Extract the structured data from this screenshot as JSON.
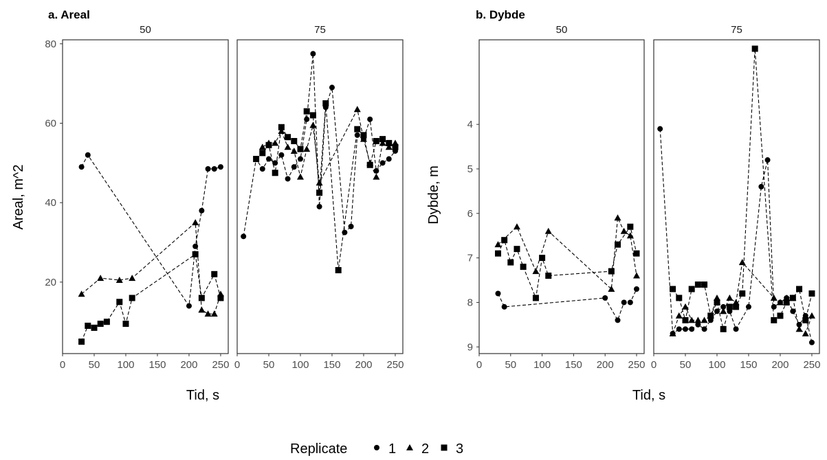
{
  "chart_data": [
    {
      "type": "scatter",
      "title": "a. Areal",
      "xlabel": "Tid, s",
      "ylabel": "Areal, m^2",
      "ylim": [
        2,
        81
      ],
      "yticks": [
        20,
        40,
        60,
        80
      ],
      "xticks": [
        0,
        50,
        100,
        150,
        200,
        250
      ],
      "facets": [
        {
          "label": "50",
          "xlim": [
            0,
            262
          ],
          "series": [
            {
              "name": "1",
              "points": [
                [
                  30,
                  49
                ],
                [
                  40,
                  52
                ],
                [
                  200,
                  14
                ],
                [
                  210,
                  29
                ],
                [
                  220,
                  38
                ],
                [
                  230,
                  48.5
                ],
                [
                  240,
                  48.5
                ],
                [
                  250,
                  49
                ]
              ]
            },
            {
              "name": "2",
              "points": [
                [
                  30,
                  17
                ],
                [
                  60,
                  21
                ],
                [
                  90,
                  20.5
                ],
                [
                  110,
                  21
                ],
                [
                  210,
                  35
                ],
                [
                  220,
                  13
                ],
                [
                  230,
                  12
                ],
                [
                  240,
                  12
                ],
                [
                  250,
                  17
                ]
              ]
            },
            {
              "name": "3",
              "points": [
                [
                  30,
                  5
                ],
                [
                  40,
                  9
                ],
                [
                  50,
                  8.5
                ],
                [
                  60,
                  9.5
                ],
                [
                  70,
                  10
                ],
                [
                  90,
                  15
                ],
                [
                  100,
                  9.5
                ],
                [
                  110,
                  16
                ],
                [
                  210,
                  27
                ],
                [
                  220,
                  16
                ],
                [
                  240,
                  22
                ],
                [
                  250,
                  16
                ]
              ]
            }
          ]
        },
        {
          "label": "75",
          "xlim": [
            0,
            262
          ],
          "series": [
            {
              "name": "1",
              "points": [
                [
                  10,
                  31.5
                ],
                [
                  30,
                  51
                ],
                [
                  40,
                  48.5
                ],
                [
                  50,
                  51
                ],
                [
                  60,
                  50
                ],
                [
                  70,
                  52
                ],
                [
                  80,
                  46
                ],
                [
                  90,
                  49
                ],
                [
                  100,
                  51
                ],
                [
                  110,
                  61
                ],
                [
                  120,
                  77.5
                ],
                [
                  130,
                  39
                ],
                [
                  140,
                  64
                ],
                [
                  150,
                  69
                ],
                [
                  170,
                  32.5
                ],
                [
                  180,
                  34
                ],
                [
                  190,
                  57
                ],
                [
                  200,
                  56
                ],
                [
                  210,
                  61
                ],
                [
                  220,
                  48
                ],
                [
                  230,
                  50
                ],
                [
                  240,
                  51
                ],
                [
                  250,
                  53
                ]
              ]
            },
            {
              "name": "2",
              "points": [
                [
                  40,
                  54
                ],
                [
                  50,
                  55
                ],
                [
                  60,
                  55
                ],
                [
                  70,
                  58
                ],
                [
                  80,
                  54
                ],
                [
                  90,
                  53
                ],
                [
                  100,
                  46.5
                ],
                [
                  110,
                  53.5
                ],
                [
                  120,
                  59.5
                ],
                [
                  130,
                  45
                ],
                [
                  190,
                  63.5
                ],
                [
                  200,
                  56
                ],
                [
                  210,
                  50
                ],
                [
                  220,
                  46.5
                ],
                [
                  230,
                  55
                ],
                [
                  240,
                  54
                ],
                [
                  250,
                  55
                ]
              ]
            },
            {
              "name": "3",
              "points": [
                [
                  30,
                  51
                ],
                [
                  40,
                  52.5
                ],
                [
                  50,
                  54.5
                ],
                [
                  60,
                  47.5
                ],
                [
                  70,
                  59
                ],
                [
                  80,
                  56.5
                ],
                [
                  90,
                  55.5
                ],
                [
                  100,
                  53.5
                ],
                [
                  110,
                  63
                ],
                [
                  120,
                  62
                ],
                [
                  130,
                  42.5
                ],
                [
                  140,
                  65
                ],
                [
                  160,
                  23
                ],
                [
                  190,
                  58.5
                ],
                [
                  200,
                  57
                ],
                [
                  210,
                  49.5
                ],
                [
                  220,
                  55.5
                ],
                [
                  230,
                  56
                ],
                [
                  240,
                  55
                ],
                [
                  250,
                  54
                ]
              ]
            }
          ]
        }
      ]
    },
    {
      "type": "scatter",
      "title": "b. Dybde",
      "xlabel": "Tid, s",
      "ylabel": "Dybde, m",
      "ylim": [
        9.15,
        2.1
      ],
      "y_reversed": true,
      "yticks": [
        4,
        5,
        6,
        7,
        8,
        9
      ],
      "xticks": [
        0,
        50,
        100,
        150,
        200,
        250
      ],
      "facets": [
        {
          "label": "50",
          "xlim": [
            0,
            262
          ],
          "series": [
            {
              "name": "1",
              "points": [
                [
                  30,
                  7.8
                ],
                [
                  40,
                  8.1
                ],
                [
                  200,
                  7.9
                ],
                [
                  220,
                  8.4
                ],
                [
                  230,
                  8.0
                ],
                [
                  240,
                  8.0
                ],
                [
                  250,
                  7.7
                ]
              ]
            },
            {
              "name": "2",
              "points": [
                [
                  30,
                  6.7
                ],
                [
                  60,
                  6.3
                ],
                [
                  90,
                  7.3
                ],
                [
                  110,
                  6.4
                ],
                [
                  210,
                  7.7
                ],
                [
                  220,
                  6.1
                ],
                [
                  230,
                  6.4
                ],
                [
                  240,
                  6.5
                ],
                [
                  250,
                  7.4
                ]
              ]
            },
            {
              "name": "3",
              "points": [
                [
                  30,
                  6.9
                ],
                [
                  40,
                  6.6
                ],
                [
                  50,
                  7.1
                ],
                [
                  60,
                  6.8
                ],
                [
                  70,
                  7.2
                ],
                [
                  90,
                  7.9
                ],
                [
                  100,
                  7.0
                ],
                [
                  110,
                  7.4
                ],
                [
                  210,
                  7.3
                ],
                [
                  220,
                  6.7
                ],
                [
                  240,
                  6.3
                ],
                [
                  250,
                  6.9
                ]
              ]
            }
          ]
        },
        {
          "label": "75",
          "xlim": [
            0,
            262
          ],
          "series": [
            {
              "name": "1",
              "points": [
                [
                  10,
                  4.1
                ],
                [
                  30,
                  8.7
                ],
                [
                  40,
                  8.6
                ],
                [
                  50,
                  8.6
                ],
                [
                  60,
                  8.6
                ],
                [
                  70,
                  8.5
                ],
                [
                  80,
                  8.6
                ],
                [
                  90,
                  8.4
                ],
                [
                  100,
                  8.2
                ],
                [
                  110,
                  8.1
                ],
                [
                  120,
                  8.2
                ],
                [
                  130,
                  8.6
                ],
                [
                  150,
                  8.1
                ],
                [
                  170,
                  5.4
                ],
                [
                  180,
                  4.8
                ],
                [
                  190,
                  8.1
                ],
                [
                  200,
                  8.0
                ],
                [
                  210,
                  7.9
                ],
                [
                  220,
                  8.2
                ],
                [
                  230,
                  8.5
                ],
                [
                  240,
                  8.3
                ],
                [
                  250,
                  8.9
                ]
              ]
            },
            {
              "name": "2",
              "points": [
                [
                  30,
                  8.7
                ],
                [
                  40,
                  8.3
                ],
                [
                  50,
                  8.1
                ],
                [
                  60,
                  8.4
                ],
                [
                  70,
                  8.4
                ],
                [
                  80,
                  8.4
                ],
                [
                  90,
                  8.3
                ],
                [
                  100,
                  7.9
                ],
                [
                  110,
                  8.2
                ],
                [
                  120,
                  7.9
                ],
                [
                  130,
                  8.0
                ],
                [
                  140,
                  7.1
                ],
                [
                  190,
                  7.9
                ],
                [
                  200,
                  8.0
                ],
                [
                  210,
                  7.9
                ],
                [
                  220,
                  7.9
                ],
                [
                  230,
                  8.6
                ],
                [
                  240,
                  8.7
                ],
                [
                  250,
                  8.3
                ]
              ]
            },
            {
              "name": "3",
              "points": [
                [
                  30,
                  7.7
                ],
                [
                  40,
                  7.9
                ],
                [
                  50,
                  8.4
                ],
                [
                  60,
                  7.7
                ],
                [
                  70,
                  7.6
                ],
                [
                  80,
                  7.6
                ],
                [
                  90,
                  8.3
                ],
                [
                  100,
                  8.0
                ],
                [
                  110,
                  8.6
                ],
                [
                  120,
                  8.1
                ],
                [
                  130,
                  8.1
                ],
                [
                  140,
                  7.8
                ],
                [
                  160,
                  2.3
                ],
                [
                  190,
                  8.4
                ],
                [
                  200,
                  8.3
                ],
                [
                  210,
                  8.0
                ],
                [
                  220,
                  7.9
                ],
                [
                  230,
                  7.7
                ],
                [
                  240,
                  8.4
                ],
                [
                  250,
                  7.8
                ]
              ]
            }
          ]
        }
      ]
    }
  ],
  "legend": {
    "title": "Replicate",
    "entries": [
      "1",
      "2",
      "3"
    ],
    "position": "bottom"
  }
}
